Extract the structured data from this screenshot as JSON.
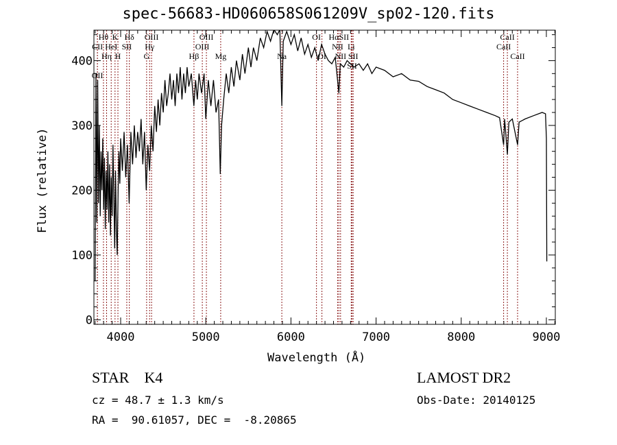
{
  "chart_data": {
    "type": "line",
    "title": "spec-56683-HD060658S061209V_sp02-120.fits",
    "xlabel": "Wavelength (Å)",
    "ylabel": "Flux (relative)",
    "xlim": [
      3686,
      9105
    ],
    "ylim": [
      -7,
      447
    ],
    "xticks": [
      4000,
      5000,
      6000,
      7000,
      8000,
      9000
    ],
    "yticks": [
      0,
      100,
      200,
      300,
      400
    ],
    "grid": false,
    "series": [
      {
        "name": "spectrum",
        "points": [
          [
            3700,
            60
          ],
          [
            3710,
            380
          ],
          [
            3720,
            150
          ],
          [
            3730,
            370
          ],
          [
            3740,
            180
          ],
          [
            3750,
            300
          ],
          [
            3760,
            160
          ],
          [
            3770,
            260
          ],
          [
            3780,
            200
          ],
          [
            3790,
            280
          ],
          [
            3800,
            170
          ],
          [
            3810,
            250
          ],
          [
            3820,
            140
          ],
          [
            3830,
            230
          ],
          [
            3840,
            170
          ],
          [
            3850,
            260
          ],
          [
            3860,
            150
          ],
          [
            3870,
            240
          ],
          [
            3880,
            130
          ],
          [
            3890,
            220
          ],
          [
            3900,
            160
          ],
          [
            3910,
            270
          ],
          [
            3920,
            190
          ],
          [
            3930,
            110
          ],
          [
            3940,
            230
          ],
          [
            3950,
            140
          ],
          [
            3960,
            100
          ],
          [
            3970,
            200
          ],
          [
            3980,
            260
          ],
          [
            3990,
            210
          ],
          [
            4000,
            280
          ],
          [
            4020,
            230
          ],
          [
            4040,
            290
          ],
          [
            4060,
            220
          ],
          [
            4080,
            270
          ],
          [
            4100,
            180
          ],
          [
            4120,
            290
          ],
          [
            4140,
            240
          ],
          [
            4160,
            300
          ],
          [
            4180,
            250
          ],
          [
            4200,
            290
          ],
          [
            4220,
            260
          ],
          [
            4240,
            310
          ],
          [
            4260,
            240
          ],
          [
            4280,
            290
          ],
          [
            4300,
            200
          ],
          [
            4320,
            270
          ],
          [
            4340,
            230
          ],
          [
            4360,
            300
          ],
          [
            4380,
            260
          ],
          [
            4400,
            330
          ],
          [
            4420,
            290
          ],
          [
            4440,
            340
          ],
          [
            4460,
            300
          ],
          [
            4480,
            350
          ],
          [
            4500,
            320
          ],
          [
            4520,
            370
          ],
          [
            4540,
            330
          ],
          [
            4560,
            350
          ],
          [
            4580,
            380
          ],
          [
            4600,
            340
          ],
          [
            4620,
            370
          ],
          [
            4640,
            330
          ],
          [
            4660,
            380
          ],
          [
            4680,
            350
          ],
          [
            4700,
            390
          ],
          [
            4720,
            340
          ],
          [
            4740,
            380
          ],
          [
            4760,
            350
          ],
          [
            4780,
            390
          ],
          [
            4800,
            360
          ],
          [
            4830,
            380
          ],
          [
            4860,
            330
          ],
          [
            4880,
            370
          ],
          [
            4900,
            340
          ],
          [
            4920,
            380
          ],
          [
            4950,
            350
          ],
          [
            4980,
            380
          ],
          [
            5000,
            310
          ],
          [
            5030,
            370
          ],
          [
            5060,
            330
          ],
          [
            5090,
            370
          ],
          [
            5120,
            320
          ],
          [
            5150,
            340
          ],
          [
            5170,
            225
          ],
          [
            5185,
            300
          ],
          [
            5210,
            340
          ],
          [
            5240,
            380
          ],
          [
            5270,
            350
          ],
          [
            5300,
            390
          ],
          [
            5330,
            360
          ],
          [
            5360,
            400
          ],
          [
            5400,
            370
          ],
          [
            5430,
            410
          ],
          [
            5460,
            380
          ],
          [
            5500,
            420
          ],
          [
            5530,
            390
          ],
          [
            5560,
            420
          ],
          [
            5600,
            400
          ],
          [
            5640,
            435
          ],
          [
            5680,
            420
          ],
          [
            5720,
            445
          ],
          [
            5760,
            430
          ],
          [
            5800,
            448
          ],
          [
            5840,
            440
          ],
          [
            5870,
            448
          ],
          [
            5893,
            330
          ],
          [
            5910,
            430
          ],
          [
            5950,
            445
          ],
          [
            6000,
            425
          ],
          [
            6040,
            440
          ],
          [
            6080,
            415
          ],
          [
            6120,
            435
          ],
          [
            6160,
            410
          ],
          [
            6200,
            425
          ],
          [
            6240,
            405
          ],
          [
            6280,
            420
          ],
          [
            6320,
            400
          ],
          [
            6360,
            425
          ],
          [
            6400,
            410
          ],
          [
            6440,
            400
          ],
          [
            6480,
            395
          ],
          [
            6520,
            405
          ],
          [
            6563,
            350
          ],
          [
            6580,
            395
          ],
          [
            6620,
            390
          ],
          [
            6660,
            400
          ],
          [
            6700,
            395
          ],
          [
            6740,
            390
          ],
          [
            6800,
            395
          ],
          [
            6850,
            385
          ],
          [
            6900,
            395
          ],
          [
            6950,
            380
          ],
          [
            7000,
            390
          ],
          [
            7100,
            385
          ],
          [
            7200,
            375
          ],
          [
            7300,
            380
          ],
          [
            7400,
            370
          ],
          [
            7500,
            368
          ],
          [
            7600,
            360
          ],
          [
            7700,
            355
          ],
          [
            7800,
            350
          ],
          [
            7900,
            340
          ],
          [
            8000,
            335
          ],
          [
            8100,
            330
          ],
          [
            8200,
            325
          ],
          [
            8300,
            320
          ],
          [
            8400,
            315
          ],
          [
            8450,
            312
          ],
          [
            8498,
            270
          ],
          [
            8510,
            310
          ],
          [
            8542,
            255
          ],
          [
            8560,
            305
          ],
          [
            8600,
            310
          ],
          [
            8662,
            270
          ],
          [
            8680,
            305
          ],
          [
            8750,
            310
          ],
          [
            8850,
            315
          ],
          [
            8950,
            320
          ],
          [
            8990,
            318
          ],
          [
            9000,
            280
          ],
          [
            9005,
            90
          ]
        ]
      }
    ],
    "line_markers": [
      {
        "label": "Hθ",
        "wl": 3798,
        "row": 0
      },
      {
        "label": "K",
        "wl": 3934,
        "row": 0
      },
      {
        "label": "Hδ",
        "wl": 4102,
        "row": 0
      },
      {
        "label": "OIII",
        "wl": 4363,
        "row": 0
      },
      {
        "label": "OIII",
        "wl": 5007,
        "row": 0
      },
      {
        "label": "OI",
        "wl": 6300,
        "row": 0
      },
      {
        "label": "HαSII",
        "wl": 6563,
        "row": 0
      },
      {
        "label": "CaII",
        "wl": 8542,
        "row": 0
      },
      {
        "label": "CII",
        "wl": 3727,
        "row": 1
      },
      {
        "label": "HeI",
        "wl": 3889,
        "row": 1
      },
      {
        "label": "SII",
        "wl": 4072,
        "row": 1
      },
      {
        "label": "Hγ",
        "wl": 4340,
        "row": 1
      },
      {
        "label": "OIII",
        "wl": 4959,
        "row": 1
      },
      {
        "label": "NII",
        "wl": 6548,
        "row": 1
      },
      {
        "label": "Li",
        "wl": 6708,
        "row": 1
      },
      {
        "label": "CaII",
        "wl": 8498,
        "row": 1
      },
      {
        "label": "OII",
        "wl": 3727,
        "row": 2
      },
      {
        "label": "Hη",
        "wl": 3835,
        "row": 2
      },
      {
        "label": "H",
        "wl": 3968,
        "row": 2
      },
      {
        "label": "G",
        "wl": 4305,
        "row": 2
      },
      {
        "label": "Hβ",
        "wl": 4861,
        "row": 2
      },
      {
        "label": "Mg",
        "wl": 5175,
        "row": 2
      },
      {
        "label": "Na",
        "wl": 5893,
        "row": 2
      },
      {
        "label": "OI",
        "wl": 6364,
        "row": 2
      },
      {
        "label": "NII",
        "wl": 6583,
        "row": 2
      },
      {
        "label": "SII",
        "wl": 6717,
        "row": 2
      },
      {
        "label": "SII",
        "wl": 6731,
        "row": 2
      },
      {
        "label": "CaII",
        "wl": 8662,
        "row": 2
      }
    ]
  },
  "info": {
    "object_class": "STAR    K4",
    "survey": "LAMOST DR2",
    "redshift": "cz = 48.7 ± 1.3 km/s",
    "obs_date": "Obs-Date: 20140125",
    "coords": "RA =  90.61057, DEC =  -8.20865"
  }
}
